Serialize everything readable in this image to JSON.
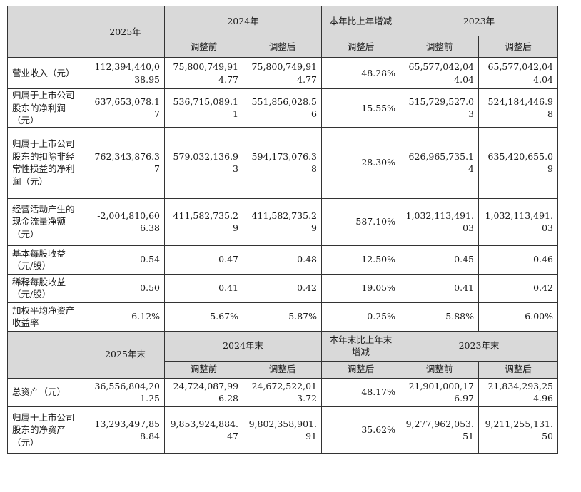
{
  "section1": {
    "header": {
      "col_2025": "2025年",
      "col_2024": "2024年",
      "col_change": "本年比上年增减",
      "col_2023": "2023年",
      "sub_before": "调整前",
      "sub_after": "调整后",
      "sub_change_after": "调整后"
    },
    "rows": [
      {
        "label": "营业收入（元）",
        "v2025": "112,394,440,038.95",
        "v2024_before": "75,800,749,914.77",
        "v2024_after": "75,800,749,914.77",
        "change": "48.28%",
        "v2023_before": "65,577,042,044.04",
        "v2023_after": "65,577,042,044.04"
      },
      {
        "label": "归属于上市公司股东的净利润（元）",
        "v2025": "637,653,078.17",
        "v2024_before": "536,715,089.11",
        "v2024_after": "551,856,028.56",
        "change": "15.55%",
        "v2023_before": "515,729,527.03",
        "v2023_after": "524,184,446.98"
      },
      {
        "label": "归属于上市公司股东的扣除非经常性损益的净利润（元）",
        "v2025": "762,343,876.37",
        "v2024_before": "579,032,136.93",
        "v2024_after": "594,173,076.38",
        "change": "28.30%",
        "v2023_before": "626,965,735.14",
        "v2023_after": "635,420,655.09"
      },
      {
        "label": "经营活动产生的现金流量净额（元）",
        "v2025": "-2,004,810,606.38",
        "v2024_before": "411,582,735.29",
        "v2024_after": "411,582,735.29",
        "change": "-587.10%",
        "v2023_before": "1,032,113,491.03",
        "v2023_after": "1,032,113,491.03"
      },
      {
        "label": "基本每股收益（元/股）",
        "v2025": "0.54",
        "v2024_before": "0.47",
        "v2024_after": "0.48",
        "change": "12.50%",
        "v2023_before": "0.45",
        "v2023_after": "0.46"
      },
      {
        "label": "稀释每股收益（元/股）",
        "v2025": "0.50",
        "v2024_before": "0.41",
        "v2024_after": "0.42",
        "change": "19.05%",
        "v2023_before": "0.41",
        "v2023_after": "0.42"
      },
      {
        "label": "加权平均净资产收益率",
        "v2025": "6.12%",
        "v2024_before": "5.67%",
        "v2024_after": "5.87%",
        "change": "0.25%",
        "v2023_before": "5.88%",
        "v2023_after": "6.00%"
      }
    ]
  },
  "section2": {
    "header": {
      "col_2025": "2025年末",
      "col_2024": "2024年末",
      "col_change": "本年末比上年末增减",
      "col_2023": "2023年末",
      "sub_before": "调整前",
      "sub_after": "调整后",
      "sub_change_after": "调整后"
    },
    "rows": [
      {
        "label": "总资产（元）",
        "v2025": "36,556,804,201.25",
        "v2024_before": "24,724,087,996.28",
        "v2024_after": "24,672,522,013.72",
        "change": "48.17%",
        "v2023_before": "21,901,000,176.97",
        "v2023_after": "21,834,293,254.96"
      },
      {
        "label": "归属于上市公司股东的净资产（元）",
        "v2025": "13,293,497,858.84",
        "v2024_before": "9,853,924,884.47",
        "v2024_after": "9,802,358,901.91",
        "change": "35.62%",
        "v2023_before": "9,277,962,053.51",
        "v2023_after": "9,211,255,131.50"
      }
    ]
  }
}
